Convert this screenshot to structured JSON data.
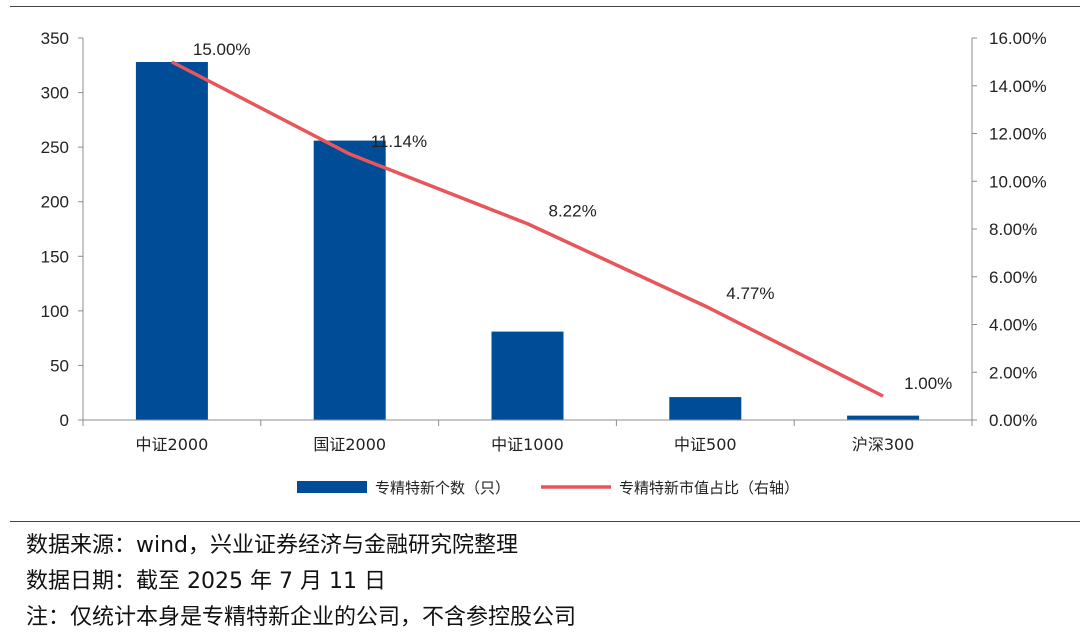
{
  "chart_data": {
    "type": "bar+line",
    "categories": [
      "中证2000",
      "国证2000",
      "中证1000",
      "中证500",
      "沪深300"
    ],
    "series": [
      {
        "name": "专精特新个数（只）",
        "type": "bar",
        "axis": "left",
        "color": "#004C97",
        "values": [
          328,
          256,
          81,
          21,
          4
        ]
      },
      {
        "name": "专精特新市值占比（右轴）",
        "type": "line",
        "axis": "right",
        "color": "#E8555A",
        "values": [
          15.0,
          11.14,
          8.22,
          4.77,
          1.0
        ],
        "labels": [
          "15.00%",
          "11.14%",
          "8.22%",
          "4.77%",
          "1.00%"
        ]
      }
    ],
    "left_axis": {
      "ylim": [
        0,
        350
      ],
      "ticks": [
        "0",
        "50",
        "100",
        "150",
        "200",
        "250",
        "300",
        "350"
      ]
    },
    "right_axis": {
      "ylim": [
        0,
        16
      ],
      "ticks": [
        "0.00%",
        "2.00%",
        "4.00%",
        "6.00%",
        "8.00%",
        "10.00%",
        "12.00%",
        "14.00%",
        "16.00%"
      ]
    },
    "legend_position": "bottom",
    "grid": false
  },
  "notes": {
    "source": "数据来源：wind，兴业证券经济与金融研究院整理",
    "date": "数据日期：截至 2025 年 7 月 11 日",
    "remark": "注：仅统计本身是专精特新企业的公司，不含参控股公司"
  }
}
